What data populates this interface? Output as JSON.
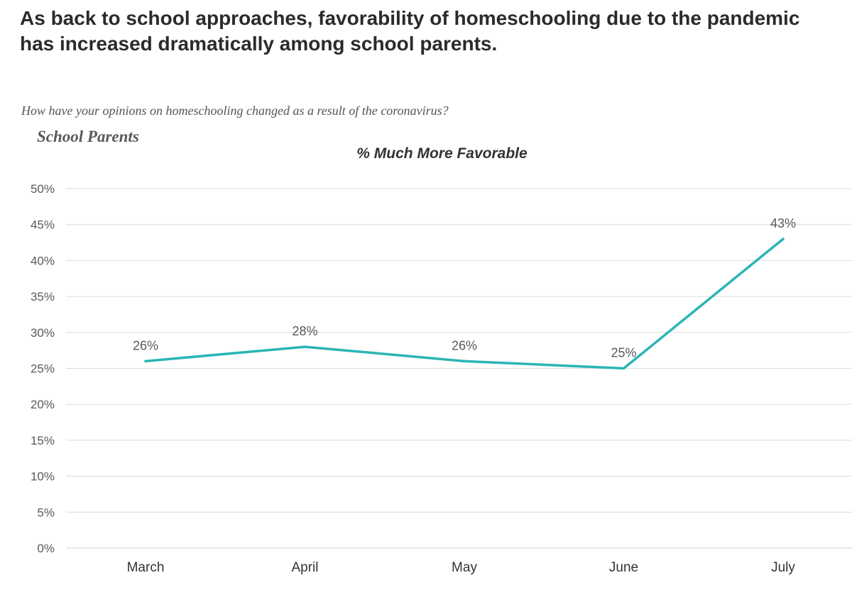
{
  "headline": "As back to school approaches, favorability of homeschooling due to the pandemic has increased dramatically among school parents.",
  "question": "How have your opinions on homeschooling changed as a result of the coronavirus?",
  "group_label": "School Parents",
  "colors": {
    "line": "#2ab5b5",
    "grid": "#dcdcdc",
    "axis": "#d0d0d0"
  },
  "chart_data": {
    "type": "line",
    "title": "% Much More Favorable",
    "xlabel": "",
    "ylabel": "",
    "categories": [
      "March",
      "April",
      "May",
      "June",
      "July"
    ],
    "series": [
      {
        "values": [
          26,
          28,
          26,
          25,
          43
        ],
        "labels": [
          "26%",
          "28%",
          "26%",
          "25%",
          "43%"
        ]
      }
    ],
    "ylim": [
      0,
      50
    ],
    "yticks": [
      0,
      5,
      10,
      15,
      20,
      25,
      30,
      35,
      40,
      45,
      50
    ],
    "ytick_labels": [
      "0%",
      "5%",
      "10%",
      "15%",
      "20%",
      "25%",
      "30%",
      "35%",
      "40%",
      "45%",
      "50%"
    ],
    "grid": true,
    "legend": "none"
  }
}
